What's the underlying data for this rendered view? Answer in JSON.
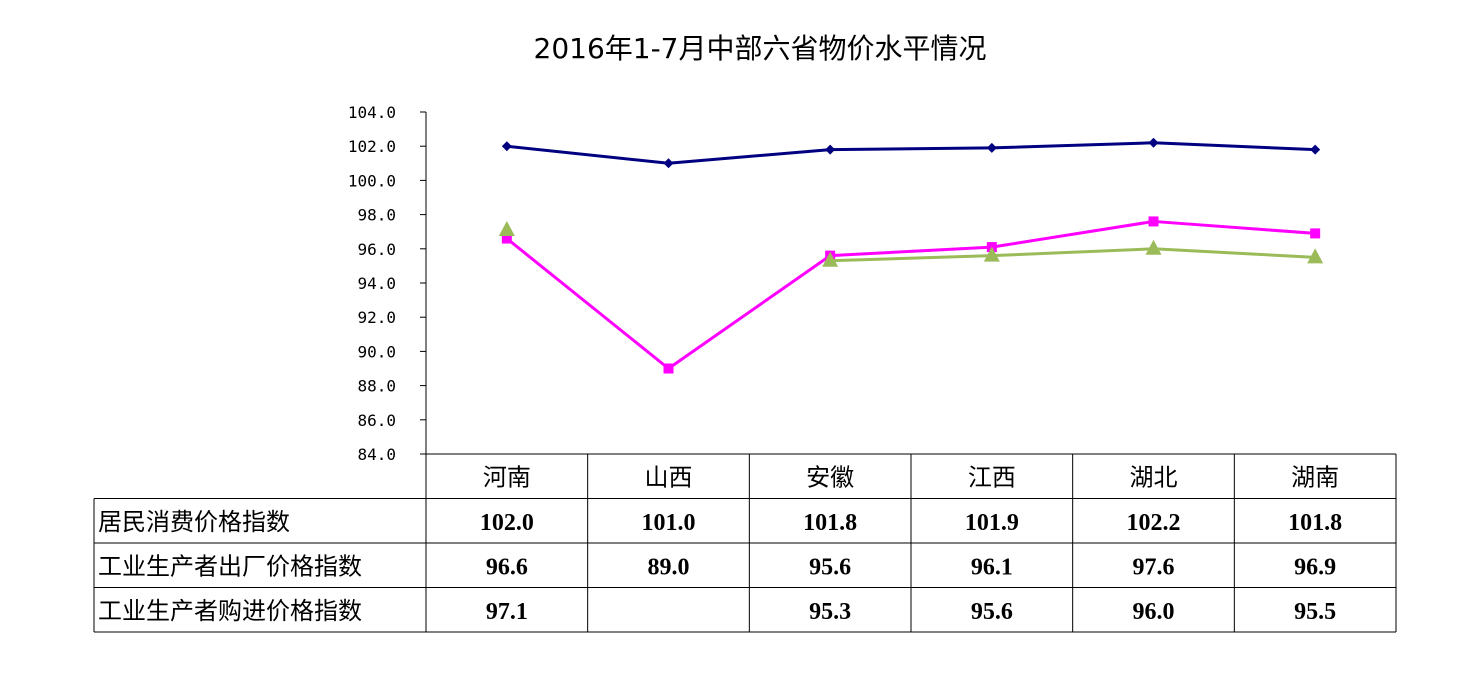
{
  "chart_data": {
    "type": "line",
    "title": "2016年1-7月中部六省物价水平情况",
    "categories": [
      "河南",
      "山西",
      "安徽",
      "江西",
      "湖北",
      "湖南"
    ],
    "ylim": [
      84.0,
      104.0
    ],
    "yticks": [
      "84.0",
      "86.0",
      "88.0",
      "90.0",
      "92.0",
      "94.0",
      "96.0",
      "98.0",
      "100.0",
      "102.0",
      "104.0"
    ],
    "grid": false,
    "legend": "data table below chart",
    "series": [
      {
        "name": "居民消费价格指数",
        "color": "#000080",
        "marker": "diamond",
        "values": [
          102.0,
          101.0,
          101.8,
          101.9,
          102.2,
          101.8
        ],
        "labels": [
          "102.0",
          "101.0",
          "101.8",
          "101.9",
          "102.2",
          "101.8"
        ]
      },
      {
        "name": "工业生产者出厂价格指数",
        "color": "#FF00FF",
        "marker": "square",
        "values": [
          96.6,
          89.0,
          95.6,
          96.1,
          97.6,
          96.9
        ],
        "labels": [
          "96.6",
          "89.0",
          "95.6",
          "96.1",
          "97.6",
          "96.9"
        ]
      },
      {
        "name": "工业生产者购进价格指数",
        "color": "#9BBB59",
        "marker": "triangle",
        "values": [
          97.1,
          null,
          95.3,
          95.6,
          96.0,
          95.5
        ],
        "labels": [
          "97.1",
          "",
          "95.3",
          "95.6",
          "96.0",
          "95.5"
        ]
      }
    ]
  }
}
